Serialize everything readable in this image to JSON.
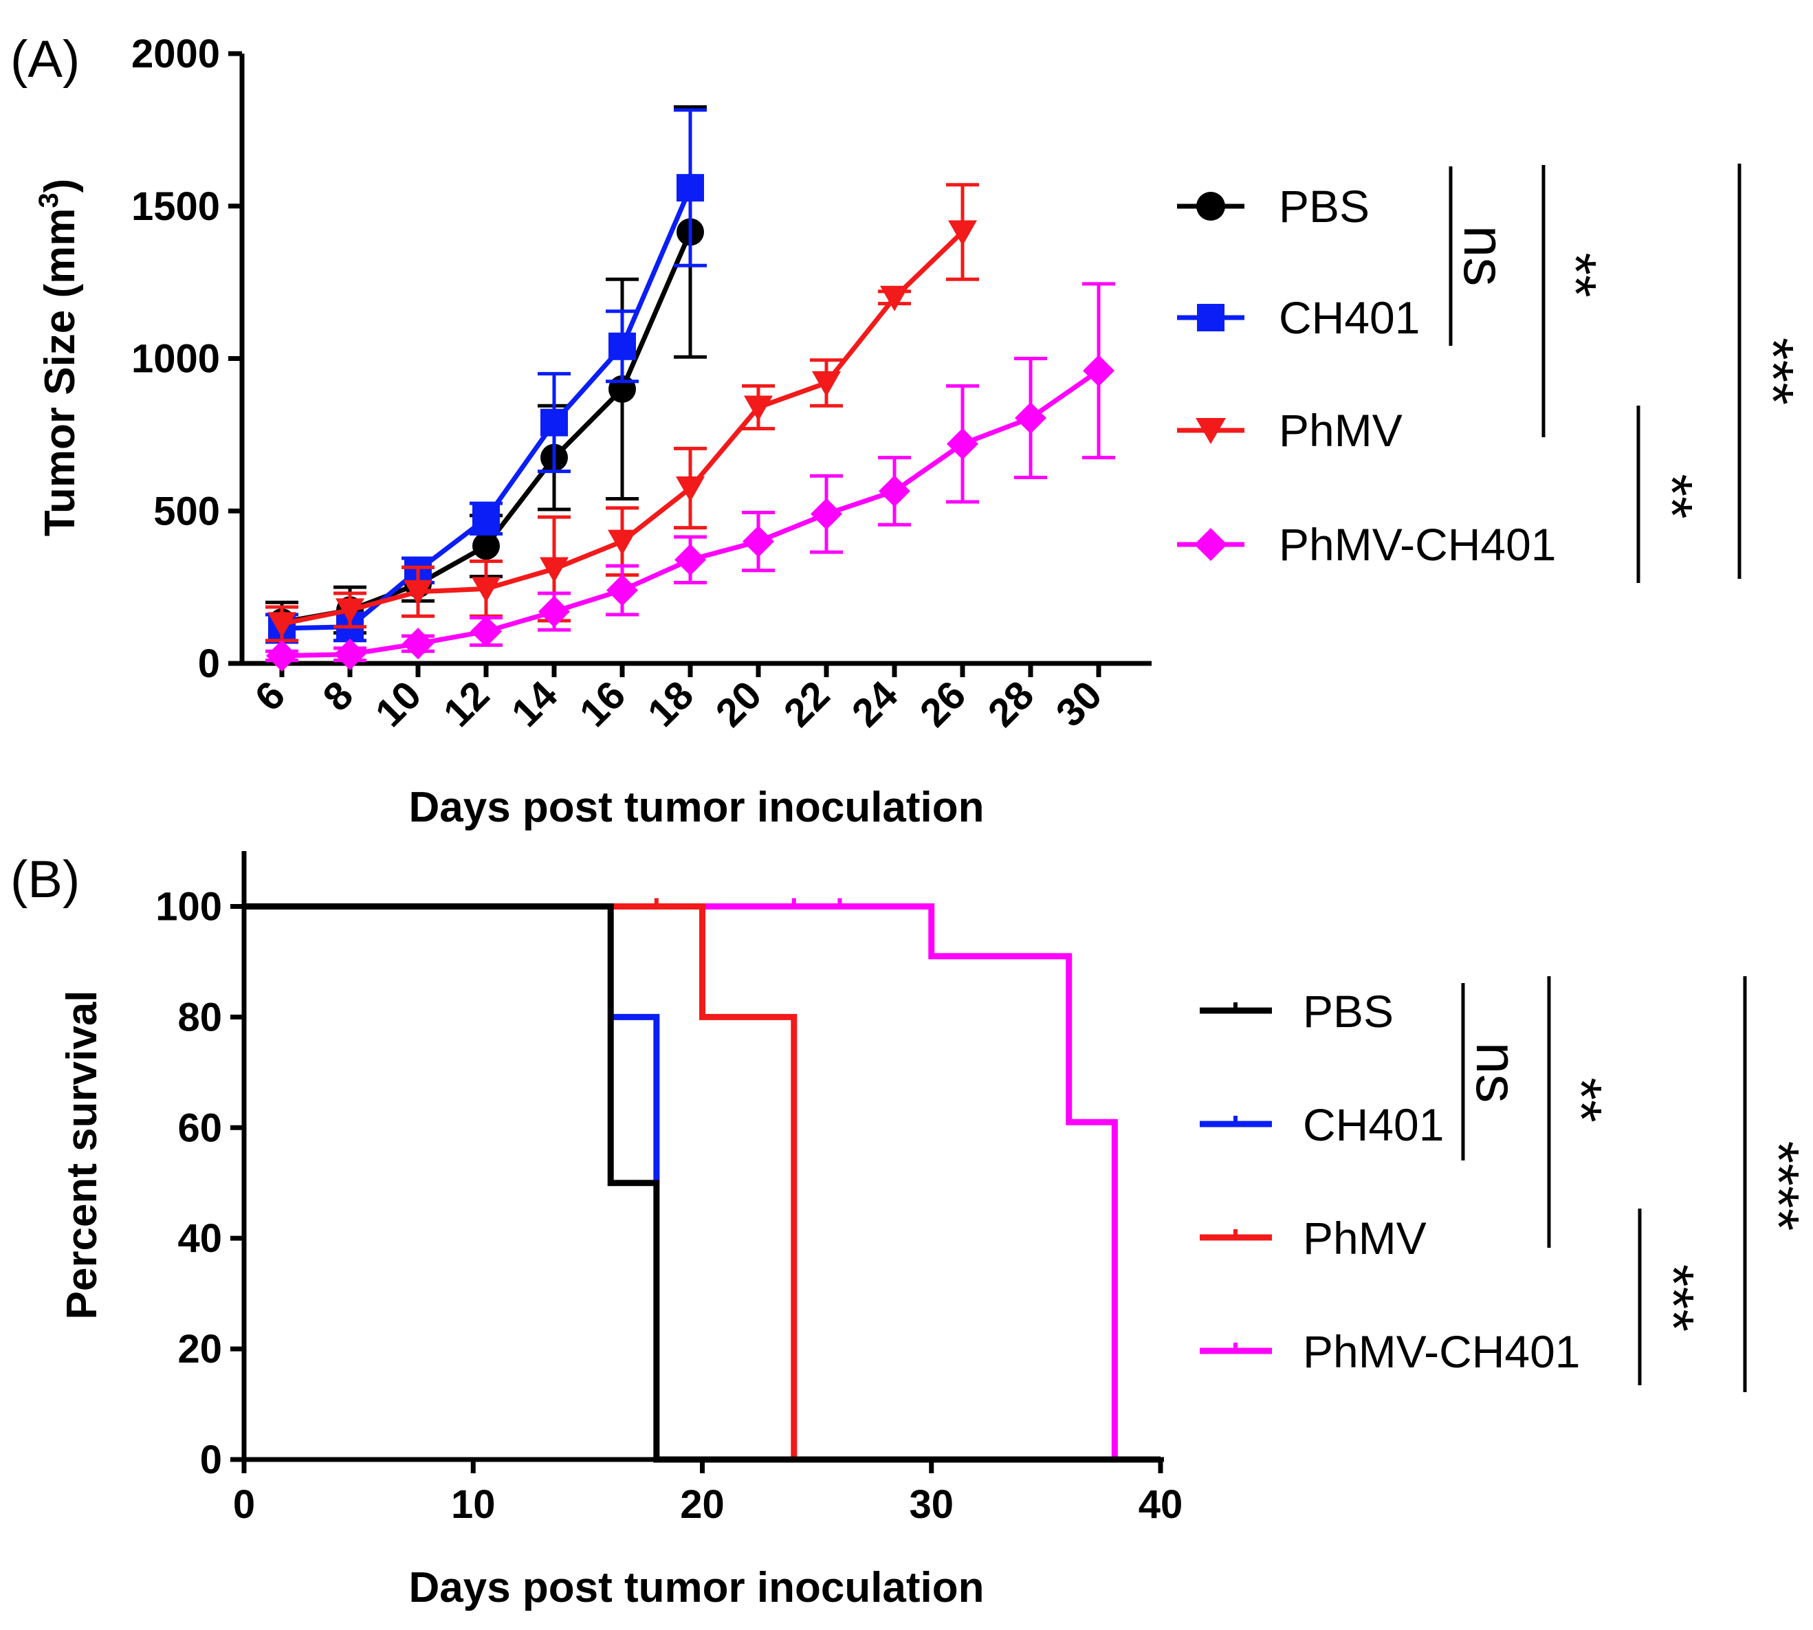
{
  "chart_data": [
    {
      "panel": "(A)",
      "type": "line",
      "xlabel": "Days post tumor inoculation",
      "ylabel_main": "Tumor Size (mm",
      "ylabel_sup": "3",
      "ylabel_end": ")",
      "ylim": [
        0,
        2000
      ],
      "yticks": [
        "0",
        "500",
        "1000",
        "1500",
        "2000"
      ],
      "categories": [
        "6",
        "8",
        "10",
        "12",
        "14",
        "16",
        "18",
        "20",
        "22",
        "24",
        "26",
        "28",
        "30"
      ],
      "series": [
        {
          "name": "PBS",
          "color": "#000000",
          "marker": "circle",
          "x": [
            6,
            8,
            10,
            12,
            14,
            16,
            18
          ],
          "values": [
            135,
            175,
            260,
            385,
            675,
            900,
            1415
          ],
          "errors": [
            65,
            75,
            55,
            100,
            170,
            360,
            410
          ]
        },
        {
          "name": "CH401",
          "color": "#0a1ef5",
          "marker": "square",
          "x": [
            6,
            8,
            10,
            12,
            14,
            16,
            18
          ],
          "values": [
            115,
            120,
            305,
            475,
            790,
            1040,
            1560
          ],
          "errors": [
            45,
            45,
            40,
            50,
            160,
            115,
            255
          ]
        },
        {
          "name": "PhMV",
          "color": "#f21a1a",
          "marker": "triangle-down",
          "x": [
            6,
            8,
            10,
            12,
            14,
            16,
            18,
            20,
            22,
            24,
            26
          ],
          "values": [
            130,
            175,
            235,
            245,
            310,
            400,
            575,
            840,
            920,
            1200,
            1415
          ],
          "errors": [
            55,
            55,
            80,
            90,
            170,
            110,
            130,
            70,
            75,
            20,
            155
          ]
        },
        {
          "name": "PhMV-CH401",
          "color": "#ff00ff",
          "marker": "diamond",
          "x": [
            6,
            8,
            10,
            12,
            14,
            16,
            18,
            20,
            22,
            24,
            26,
            28,
            30
          ],
          "values": [
            25,
            30,
            65,
            105,
            170,
            240,
            340,
            400,
            490,
            565,
            720,
            805,
            960
          ],
          "errors": [
            15,
            20,
            25,
            45,
            60,
            80,
            75,
            95,
            125,
            110,
            190,
            195,
            285
          ]
        }
      ],
      "significance": [
        {
          "label": "ns",
          "between": "PBS vs CH401"
        },
        {
          "label": "**",
          "between": "PBS vs PhMV"
        },
        {
          "label": "**",
          "between": "PhMV vs PhMV-CH401"
        },
        {
          "label": "***",
          "between": "PBS vs PhMV-CH401"
        }
      ]
    },
    {
      "panel": "(B)",
      "type": "line",
      "subtype": "survival-step",
      "xlabel": "Days post tumor inoculation",
      "ylabel": "Percent survival",
      "xlim": [
        0,
        40
      ],
      "ylim": [
        0,
        110
      ],
      "xticks": [
        "0",
        "10",
        "20",
        "30",
        "40"
      ],
      "yticks": [
        "0",
        "20",
        "40",
        "60",
        "80",
        "100"
      ],
      "series": [
        {
          "name": "PBS",
          "color": "#000000",
          "steps": [
            [
              0,
              100
            ],
            [
              16,
              50
            ],
            [
              18,
              0
            ],
            [
              40,
              0
            ]
          ],
          "censored": []
        },
        {
          "name": "CH401",
          "color": "#0a1ef5",
          "steps": [
            [
              16,
              80
            ],
            [
              18,
              50
            ]
          ],
          "censored": []
        },
        {
          "name": "PhMV",
          "color": "#f21a1a",
          "steps": [
            [
              16,
              100
            ],
            [
              20,
              80
            ],
            [
              24,
              0
            ]
          ],
          "censored": [
            18
          ]
        },
        {
          "name": "PhMV-CH401",
          "color": "#ff00ff",
          "steps": [
            [
              20,
              100
            ],
            [
              30,
              91
            ],
            [
              36,
              61
            ],
            [
              38,
              0
            ]
          ],
          "censored": [
            24,
            26
          ]
        }
      ],
      "significance": [
        {
          "label": "ns",
          "between": "PBS vs CH401"
        },
        {
          "label": "**",
          "between": "PBS vs PhMV"
        },
        {
          "label": "***",
          "between": "PhMV vs PhMV-CH401"
        },
        {
          "label": "****",
          "between": "PBS vs PhMV-CH401"
        }
      ]
    }
  ]
}
